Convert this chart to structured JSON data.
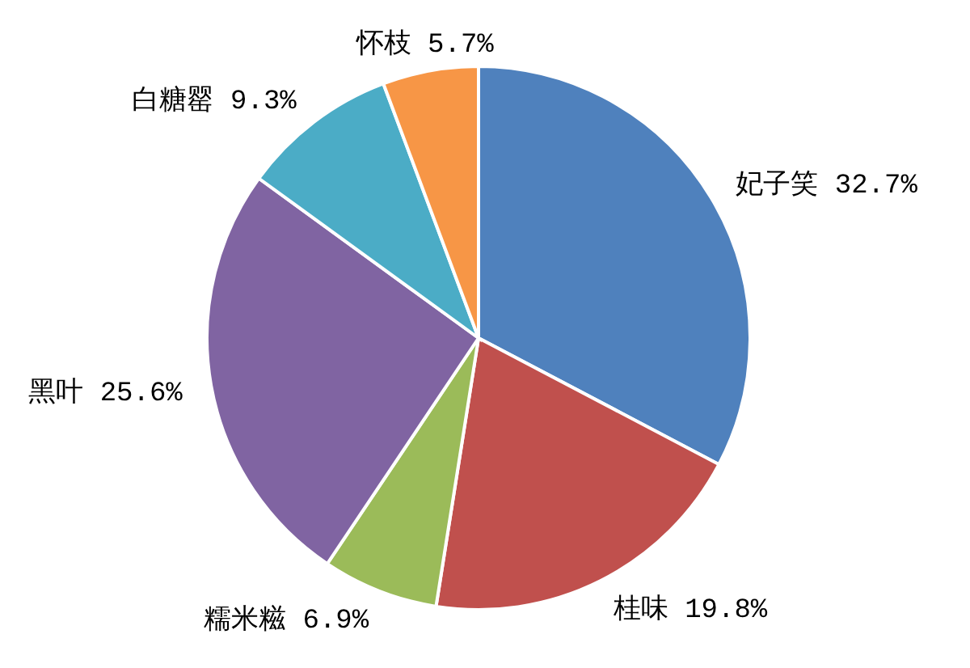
{
  "chart_data": {
    "type": "pie",
    "categories": [
      "妃子笑",
      "桂味",
      "糯米糍",
      "黑叶",
      "白糖罂",
      "怀枝"
    ],
    "values": [
      32.7,
      19.8,
      6.9,
      25.6,
      9.3,
      5.7
    ],
    "value_labels": [
      "32.7%",
      "19.8%",
      "6.9%",
      "25.6%",
      "9.3%",
      "5.7%"
    ],
    "colors": [
      "#4f81bd",
      "#c0504d",
      "#9bbb59",
      "#8064a2",
      "#4bacc6",
      "#f79646"
    ]
  }
}
